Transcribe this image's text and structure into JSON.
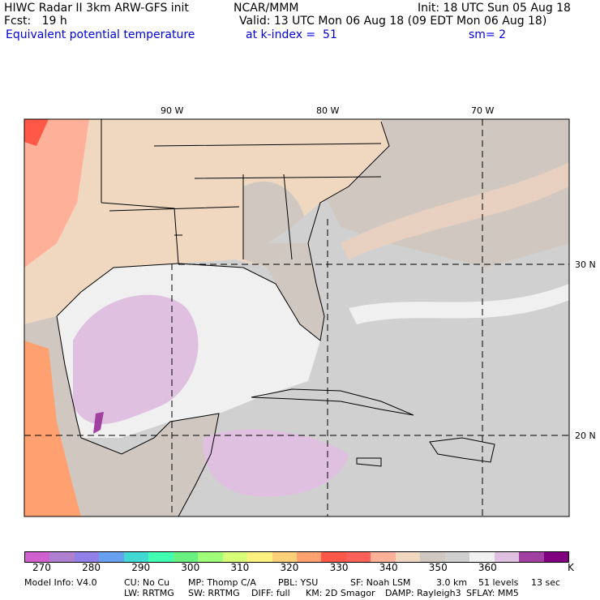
{
  "header": {
    "title": "HIWC Radar II 3km ARW-GFS init",
    "org": "NCAR/MMM",
    "init": "Init: 18 UTC Sun 05 Aug 18",
    "fcst": "Fcst:   19 h",
    "valid": "Valid: 13 UTC Mon 06 Aug 18 (09 EDT Mon 06 Aug 18)",
    "field": "Equivalent potential temperature",
    "level": "at k-index =  51",
    "smooth": "sm= 2"
  },
  "chart_data": {
    "type": "heatmap",
    "title": "Equivalent potential temperature",
    "units": "K",
    "lon_labels": [
      "90 W",
      "80 W",
      "70 W"
    ],
    "lat_labels": [
      "30 N",
      "20 N"
    ],
    "colorbar": {
      "ticks": [
        "270",
        "280",
        "290",
        "300",
        "310",
        "320",
        "330",
        "340",
        "350",
        "360"
      ],
      "unit_label": "K",
      "colors": [
        "#d060d0",
        "#b080d0",
        "#9080e8",
        "#68a0f0",
        "#40d8d0",
        "#40ffb0",
        "#68f080",
        "#a0ff78",
        "#d8ff78",
        "#fff080",
        "#ffd078",
        "#ffa070",
        "#ff5848",
        "#ff6058",
        "#ffb098",
        "#f0d8c0",
        "#d0c8c0",
        "#d0d0d0",
        "#f0f0f0",
        "#e0c0e0",
        "#a040a0",
        "#800080"
      ]
    }
  },
  "model_info": {
    "line1": [
      "Model Info: V4.0",
      "CU: No Cu",
      "MP: Thomp C/A",
      "PBL: YSU",
      "SF: Noah LSM",
      "3.0 km",
      "51 levels",
      "13 sec"
    ],
    "line2": [
      "LW: RRTMG",
      "SW: RRTMG",
      "DIFF: full",
      "KM: 2D Smagor",
      "DAMP: Rayleigh3",
      "SFLAY: MM5"
    ]
  }
}
